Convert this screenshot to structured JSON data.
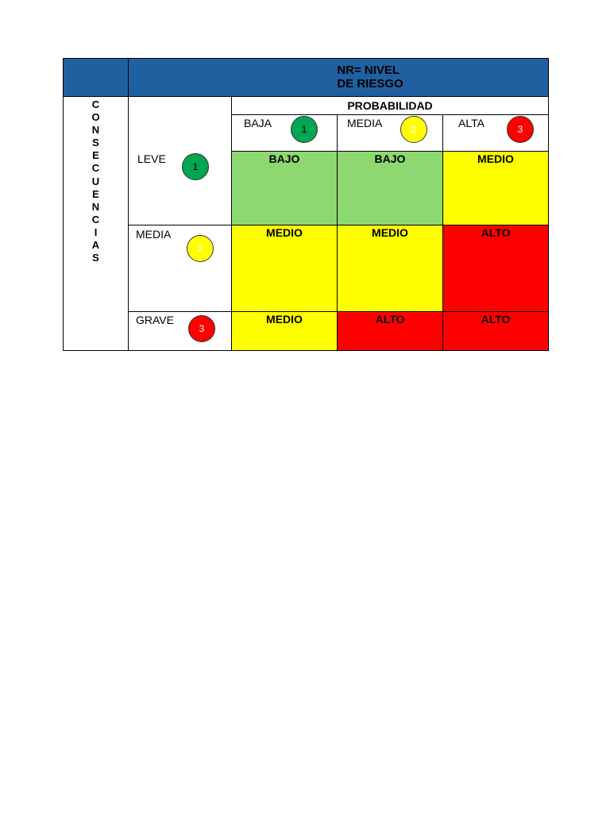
{
  "title": {
    "line1": "NR= NIVEL",
    "line2": "DE RIESGO"
  },
  "consequences_letters": [
    "C",
    "O",
    "N",
    "S",
    "E",
    "C",
    "U",
    "E",
    "N",
    "C",
    "I",
    "A",
    "S"
  ],
  "probability": {
    "label": "PROBABILIDAD",
    "levels": [
      {
        "label": "BAJA",
        "score": "1"
      },
      {
        "label": "MEDIA",
        "score": "2"
      },
      {
        "label": "ALTA",
        "score": "3"
      }
    ]
  },
  "consequences": [
    {
      "label": "LEVE",
      "score": "1"
    },
    {
      "label": "MEDIA",
      "score": "2"
    },
    {
      "label": "GRAVE",
      "score": "3"
    }
  ],
  "matrix": [
    [
      "BAJO",
      "BAJO",
      "MEDIO"
    ],
    [
      "MEDIO",
      "MEDIO",
      "ALTO"
    ],
    [
      "MEDIO",
      "ALTO",
      "ALTO"
    ]
  ],
  "colors": {
    "header_blue": "#2160a0",
    "low_green": "#8ed871",
    "medium_yellow": "#ffff00",
    "high_red": "#ff0000",
    "badge_green": "#00a651"
  }
}
